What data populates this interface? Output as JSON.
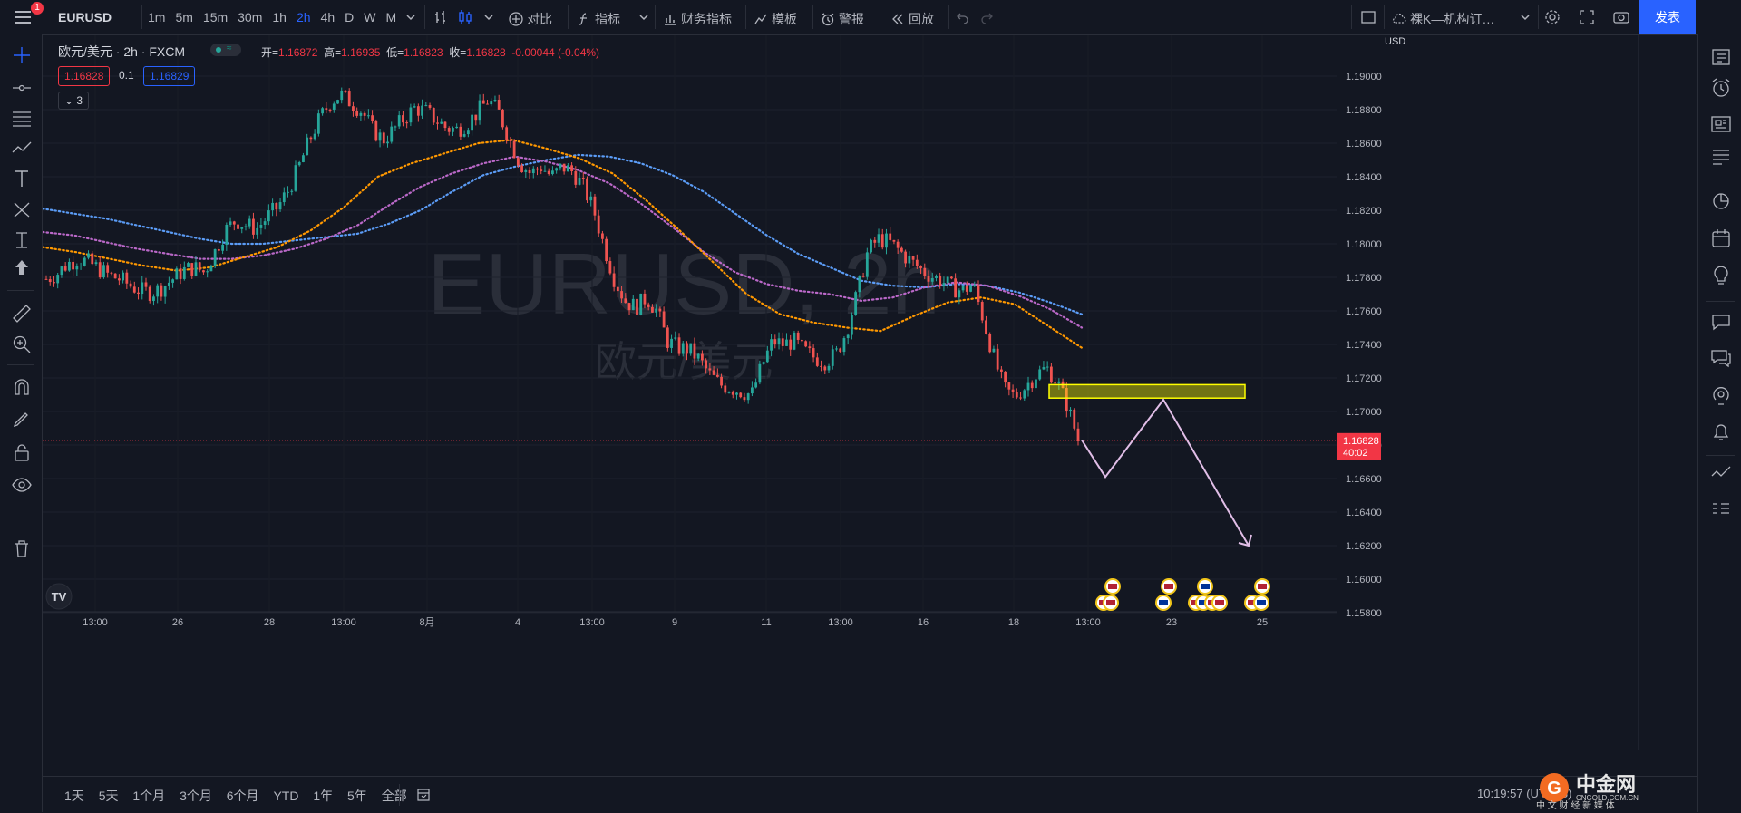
{
  "header": {
    "notification_count": "1",
    "symbol": "EURUSD",
    "intervals": [
      "1m",
      "5m",
      "15m",
      "30m",
      "1h",
      "2h",
      "4h",
      "D",
      "W",
      "M"
    ],
    "active_interval": "2h",
    "compare_label": "对比",
    "indicators_label": "指标",
    "financials_label": "财务指标",
    "templates_label": "模板",
    "alert_label": "警报",
    "replay_label": "回放",
    "layout_name": "裸K—机构订…",
    "publish_label": "发表"
  },
  "legend": {
    "title": "欧元/美元 · 2h · FXCM",
    "status_glyph": "≈",
    "open_label": "开=",
    "open": "1.16872",
    "high_label": "高=",
    "high": "1.16935",
    "low_label": "低=",
    "low": "1.16823",
    "close_label": "收=",
    "close": "1.16828",
    "change": "-0.00044 (-0.04%)",
    "bid": "1.16828",
    "spread": "0.1",
    "ask": "1.16829",
    "indicator_count": "3"
  },
  "watermark": {
    "symbol": "EURUSD, 2h",
    "name": "欧元/美元"
  },
  "chart_data": {
    "type": "candlestick",
    "symbol": "EURUSD",
    "interval": "2h",
    "currency": "USD",
    "ylim": [
      1.1572,
      1.1922
    ],
    "y_ticks": [
      "1.19000",
      "1.18800",
      "1.18600",
      "1.18400",
      "1.18200",
      "1.18000",
      "1.17800",
      "1.17600",
      "1.17400",
      "1.17200",
      "1.17000",
      "1.16800",
      "1.16600",
      "1.16400",
      "1.16200",
      "1.16000",
      "1.15800"
    ],
    "x_ticks": [
      "13:00",
      "26",
      "28",
      "13:00",
      "8月",
      "4",
      "13:00",
      "9",
      "11",
      "13:00",
      "16",
      "18",
      "13:00",
      "23",
      "25"
    ],
    "last_price": "1.16828",
    "countdown": "40:02",
    "close_path": [
      1.1779,
      1.1782,
      1.1788,
      1.1791,
      1.1789,
      1.1785,
      1.1781,
      1.1779,
      1.1775,
      1.1772,
      1.1771,
      1.1774,
      1.1779,
      1.1784,
      1.1786,
      1.1783,
      1.1795,
      1.1808,
      1.1814,
      1.1811,
      1.1809,
      1.1816,
      1.1822,
      1.1832,
      1.1846,
      1.1862,
      1.1875,
      1.1885,
      1.1889,
      1.1884,
      1.1879,
      1.1868,
      1.1862,
      1.1868,
      1.1875,
      1.1881,
      1.1879,
      1.1874,
      1.1869,
      1.1868,
      1.1872,
      1.1879,
      1.1886,
      1.1878,
      1.1862,
      1.1848,
      1.1842,
      1.1846,
      1.184,
      1.1846,
      1.1843,
      1.1834,
      1.182,
      1.1798,
      1.1778,
      1.1766,
      1.1762,
      1.1768,
      1.176,
      1.1742,
      1.1738,
      1.1737,
      1.1731,
      1.1722,
      1.1716,
      1.1714,
      1.1712,
      1.171,
      1.1728,
      1.1742,
      1.174,
      1.1742,
      1.1736,
      1.1732,
      1.173,
      1.1734,
      1.1748,
      1.177,
      1.1795,
      1.1803,
      1.1801,
      1.1796,
      1.179,
      1.1785,
      1.1781,
      1.1778,
      1.1774,
      1.1772,
      1.1776,
      1.1755,
      1.1732,
      1.1713,
      1.1709,
      1.1715,
      1.1722,
      1.1726,
      1.1718,
      1.1703,
      1.1683
    ],
    "moving_averages": [
      {
        "color": "#5b9cf6",
        "values": [
          1.1821,
          1.1818,
          1.1815,
          1.1811,
          1.1807,
          1.1803,
          1.18,
          1.18,
          1.1802,
          1.1804,
          1.1806,
          1.1812,
          1.182,
          1.1831,
          1.1841,
          1.1846,
          1.185,
          1.1853,
          1.1852,
          1.1848,
          1.1841,
          1.1831,
          1.1818,
          1.1805,
          1.1794,
          1.1786,
          1.1778,
          1.1775,
          1.1774,
          1.1776,
          1.1775,
          1.1771,
          1.1765,
          1.1758
        ]
      },
      {
        "color": "#ba68c8",
        "values": [
          1.1807,
          1.1805,
          1.1801,
          1.1797,
          1.1794,
          1.1791,
          1.1791,
          1.1793,
          1.1797,
          1.1803,
          1.1811,
          1.1823,
          1.1834,
          1.1842,
          1.1848,
          1.1852,
          1.1849,
          1.1844,
          1.1836,
          1.1824,
          1.181,
          1.1795,
          1.1783,
          1.1776,
          1.1772,
          1.177,
          1.1766,
          1.1768,
          1.1774,
          1.1777,
          1.1775,
          1.1769,
          1.1761,
          1.175
        ]
      },
      {
        "color": "#ff9800",
        "values": [
          1.1798,
          1.1795,
          1.1791,
          1.1787,
          1.1784,
          1.1786,
          1.1792,
          1.1798,
          1.1808,
          1.1822,
          1.184,
          1.1848,
          1.1854,
          1.186,
          1.1862,
          1.1857,
          1.1851,
          1.1842,
          1.1826,
          1.1808,
          1.1789,
          1.177,
          1.1758,
          1.1753,
          1.175,
          1.1748,
          1.1757,
          1.1765,
          1.1768,
          1.1764,
          1.1751,
          1.1738
        ]
      }
    ],
    "annotations": [
      {
        "type": "zone",
        "color": "#ffff00",
        "from": 1.1708,
        "to": 1.1716
      },
      {
        "type": "projection",
        "color": "#e1bee7",
        "points": [
          1.1683,
          1.1661,
          1.1707,
          1.162
        ]
      }
    ]
  },
  "price_axis": {
    "currency": "USD",
    "last_price": "1.16828",
    "countdown": "40:02"
  },
  "time_axis": {
    "labels": [
      "13:00",
      "26",
      "28",
      "13:00",
      "8月",
      "4",
      "13:00",
      "9",
      "11",
      "13:00",
      "16",
      "18",
      "13:00",
      "23",
      "25"
    ]
  },
  "bottom": {
    "ranges": [
      "1天",
      "5天",
      "1个月",
      "3个月",
      "6个月",
      "YTD",
      "1年",
      "5年",
      "全部"
    ],
    "clock": "10:19:57 (UTC+8)",
    "site_name": "中金网",
    "site_url": "CNGOLD.COM.CN",
    "site_slogan": "中 文 财 经 新 媒 体"
  },
  "colors": {
    "up": "#26a69a",
    "down": "#ef5350",
    "accent": "#2962ff",
    "background": "#131722"
  }
}
